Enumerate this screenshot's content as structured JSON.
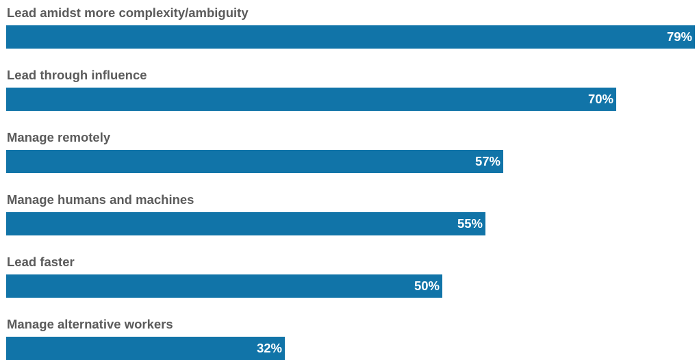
{
  "chart_data": {
    "type": "bar",
    "orientation": "horizontal",
    "categories": [
      "Lead amidst more complexity/ambiguity",
      "Lead through influence",
      "Manage remotely",
      "Manage humans and machines",
      "Lead faster",
      "Manage alternative workers"
    ],
    "values": [
      79,
      70,
      57,
      55,
      50,
      32
    ],
    "value_labels": [
      "79%",
      "70%",
      "57%",
      "55%",
      "50%",
      "32%"
    ],
    "xlim": [
      0,
      79
    ],
    "grid": false,
    "legend": "none",
    "bar_color": "#1174a8",
    "label_color": "#5b5b5b",
    "value_label_color": "#ffffff"
  }
}
